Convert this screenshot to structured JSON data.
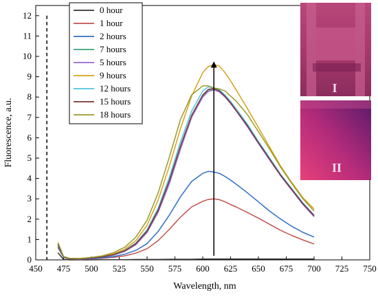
{
  "chart_data": {
    "type": "line",
    "xlabel": "Wavelength, nm",
    "ylabel": "Fluorescence, a.u.",
    "xlim": [
      450,
      750
    ],
    "ylim": [
      0,
      12.5
    ],
    "xticks": [
      "450",
      "475",
      "500",
      "525",
      "550",
      "575",
      "600",
      "625",
      "650",
      "675",
      "700",
      "725",
      "750"
    ],
    "yticks": [
      "0",
      "1",
      "2",
      "3",
      "4",
      "5",
      "6",
      "7",
      "8",
      "9",
      "10",
      "11",
      "12"
    ],
    "x": [
      470,
      475,
      480,
      490,
      500,
      510,
      520,
      530,
      540,
      550,
      560,
      570,
      580,
      590,
      600,
      605,
      610,
      615,
      620,
      625,
      630,
      640,
      650,
      660,
      670,
      680,
      690,
      700
    ],
    "series": [
      {
        "name": "0 hour",
        "color": "#333333",
        "values": [
          0.35,
          0.02,
          0.0,
          0.0,
          0.0,
          0.01,
          0.01,
          0.01,
          0.02,
          0.02,
          0.02,
          0.03,
          0.03,
          0.03,
          0.04,
          0.04,
          0.04,
          0.04,
          0.04,
          0.04,
          0.04,
          0.04,
          0.04,
          0.04,
          0.04,
          0.04,
          0.04,
          0.04
        ]
      },
      {
        "name": "1 hour",
        "color": "#c0504d",
        "values": [
          0.6,
          0.12,
          0.04,
          0.03,
          0.05,
          0.08,
          0.13,
          0.2,
          0.33,
          0.55,
          0.95,
          1.5,
          2.1,
          2.6,
          2.88,
          2.97,
          3.0,
          2.96,
          2.85,
          2.72,
          2.6,
          2.33,
          2.05,
          1.75,
          1.45,
          1.2,
          0.98,
          0.78
        ]
      },
      {
        "name": "2 hours",
        "color": "#2f6fc4",
        "values": [
          0.65,
          0.13,
          0.05,
          0.04,
          0.06,
          0.1,
          0.17,
          0.28,
          0.47,
          0.8,
          1.4,
          2.2,
          3.1,
          3.85,
          4.25,
          4.35,
          4.32,
          4.25,
          4.1,
          3.92,
          3.72,
          3.3,
          2.85,
          2.4,
          2.0,
          1.65,
          1.35,
          1.12
        ]
      },
      {
        "name": "7 hours",
        "color": "#3aa67a",
        "values": [
          0.75,
          0.15,
          0.06,
          0.05,
          0.08,
          0.14,
          0.24,
          0.42,
          0.75,
          1.35,
          2.35,
          3.75,
          5.45,
          7.0,
          8.05,
          8.35,
          8.4,
          8.32,
          8.05,
          7.72,
          7.35,
          6.6,
          5.75,
          4.95,
          4.15,
          3.45,
          2.75,
          2.15
        ]
      },
      {
        "name": "5 hours",
        "color": "#9966cc",
        "values": [
          0.75,
          0.15,
          0.06,
          0.05,
          0.08,
          0.14,
          0.24,
          0.42,
          0.75,
          1.35,
          2.35,
          3.75,
          5.45,
          7.0,
          8.0,
          8.28,
          8.35,
          8.25,
          8.0,
          7.68,
          7.32,
          6.55,
          5.72,
          4.92,
          4.12,
          3.42,
          2.72,
          2.12
        ]
      },
      {
        "name": "9 hours",
        "color": "#d4a217",
        "values": [
          0.8,
          0.16,
          0.07,
          0.06,
          0.1,
          0.17,
          0.3,
          0.52,
          0.95,
          1.7,
          2.95,
          4.6,
          6.45,
          8.05,
          9.2,
          9.5,
          9.6,
          9.52,
          9.2,
          8.8,
          8.35,
          7.45,
          6.5,
          5.55,
          4.6,
          3.8,
          3.05,
          2.5
        ]
      },
      {
        "name": "12 hours",
        "color": "#4cc4dd",
        "values": [
          0.78,
          0.15,
          0.06,
          0.05,
          0.09,
          0.15,
          0.26,
          0.46,
          0.83,
          1.48,
          2.55,
          4.05,
          5.8,
          7.3,
          8.3,
          8.5,
          8.45,
          8.35,
          8.1,
          7.78,
          7.42,
          6.68,
          5.82,
          5.02,
          4.2,
          3.5,
          2.8,
          2.2
        ]
      },
      {
        "name": "15 hours",
        "color": "#7a3535",
        "values": [
          0.76,
          0.15,
          0.06,
          0.05,
          0.09,
          0.15,
          0.26,
          0.45,
          0.8,
          1.42,
          2.45,
          3.9,
          5.6,
          7.1,
          8.1,
          8.38,
          8.42,
          8.3,
          8.04,
          7.72,
          7.35,
          6.6,
          5.76,
          4.96,
          4.16,
          3.46,
          2.76,
          2.18
        ]
      },
      {
        "name": "18 hours",
        "color": "#9a9a2a",
        "values": [
          0.85,
          0.17,
          0.08,
          0.07,
          0.12,
          0.2,
          0.36,
          0.62,
          1.12,
          1.95,
          3.3,
          5.05,
          6.9,
          8.1,
          8.55,
          8.55,
          8.45,
          8.4,
          8.3,
          8.05,
          7.8,
          7.15,
          6.3,
          5.45,
          4.55,
          3.75,
          3.0,
          2.4
        ]
      }
    ],
    "annotations": {
      "dashed_vline_x": 460,
      "arrow": {
        "x": 610,
        "from_y": 0.2,
        "to_y": 9.6
      }
    },
    "grid": false,
    "legend_position": "top-left"
  },
  "insets": [
    {
      "label": "I"
    },
    {
      "label": "II"
    }
  ]
}
